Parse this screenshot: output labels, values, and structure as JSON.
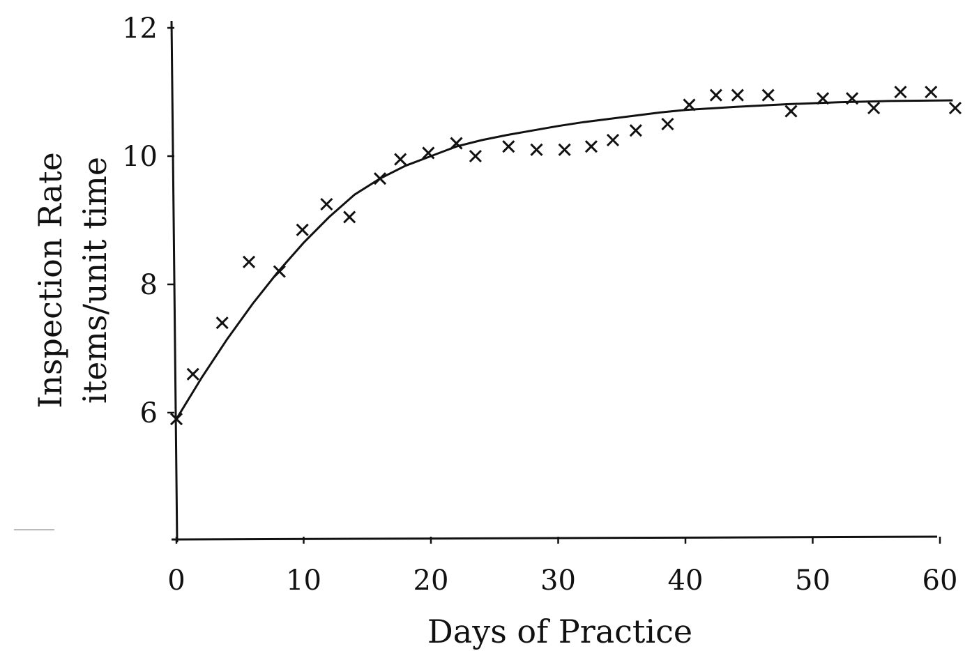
{
  "chart_data": {
    "type": "scatter",
    "xlabel": "Days of Practice",
    "ylabel_lines": [
      "Inspection Rate",
      "items/unit time"
    ],
    "xlim": [
      0,
      60
    ],
    "ylim": [
      4,
      12
    ],
    "x_ticks": [
      0,
      10,
      20,
      30,
      40,
      50,
      60
    ],
    "x_tick_labels": [
      "0",
      "10",
      "20",
      "30",
      "40",
      "50",
      "60"
    ],
    "y_ticks": [
      6,
      8,
      10,
      12
    ],
    "y_tick_labels": [
      "6",
      "8",
      "10",
      "12"
    ],
    "grid": false,
    "marker": "x",
    "points": [
      {
        "x": 0,
        "y": 5.9
      },
      {
        "x": 1.3,
        "y": 6.6
      },
      {
        "x": 3.6,
        "y": 7.4
      },
      {
        "x": 5.7,
        "y": 8.35
      },
      {
        "x": 8.1,
        "y": 8.2
      },
      {
        "x": 9.9,
        "y": 8.85
      },
      {
        "x": 11.8,
        "y": 9.25
      },
      {
        "x": 13.6,
        "y": 9.05
      },
      {
        "x": 16.0,
        "y": 9.65
      },
      {
        "x": 17.6,
        "y": 9.95
      },
      {
        "x": 19.8,
        "y": 10.05
      },
      {
        "x": 22.0,
        "y": 10.2
      },
      {
        "x": 23.5,
        "y": 10.0
      },
      {
        "x": 26.1,
        "y": 10.15
      },
      {
        "x": 28.3,
        "y": 10.1
      },
      {
        "x": 30.5,
        "y": 10.1
      },
      {
        "x": 32.6,
        "y": 10.15
      },
      {
        "x": 34.3,
        "y": 10.25
      },
      {
        "x": 36.1,
        "y": 10.4
      },
      {
        "x": 38.6,
        "y": 10.5
      },
      {
        "x": 40.3,
        "y": 10.8
      },
      {
        "x": 42.4,
        "y": 10.95
      },
      {
        "x": 44.1,
        "y": 10.95
      },
      {
        "x": 46.5,
        "y": 10.95
      },
      {
        "x": 48.3,
        "y": 10.7
      },
      {
        "x": 50.8,
        "y": 10.9
      },
      {
        "x": 53.1,
        "y": 10.9
      },
      {
        "x": 54.8,
        "y": 10.75
      },
      {
        "x": 56.9,
        "y": 11.0
      },
      {
        "x": 59.3,
        "y": 11.0
      },
      {
        "x": 61.2,
        "y": 10.75
      }
    ],
    "fit_curve": [
      {
        "x": 0,
        "y": 5.9
      },
      {
        "x": 2,
        "y": 6.55
      },
      {
        "x": 4,
        "y": 7.15
      },
      {
        "x": 6,
        "y": 7.7
      },
      {
        "x": 8,
        "y": 8.2
      },
      {
        "x": 10,
        "y": 8.65
      },
      {
        "x": 12,
        "y": 9.05
      },
      {
        "x": 14,
        "y": 9.4
      },
      {
        "x": 16,
        "y": 9.65
      },
      {
        "x": 18,
        "y": 9.85
      },
      {
        "x": 20,
        "y": 10.0
      },
      {
        "x": 22,
        "y": 10.15
      },
      {
        "x": 24,
        "y": 10.25
      },
      {
        "x": 26,
        "y": 10.33
      },
      {
        "x": 28,
        "y": 10.4
      },
      {
        "x": 30,
        "y": 10.47
      },
      {
        "x": 32,
        "y": 10.53
      },
      {
        "x": 34,
        "y": 10.58
      },
      {
        "x": 36,
        "y": 10.63
      },
      {
        "x": 38,
        "y": 10.68
      },
      {
        "x": 40,
        "y": 10.72
      },
      {
        "x": 44,
        "y": 10.77
      },
      {
        "x": 48,
        "y": 10.81
      },
      {
        "x": 52,
        "y": 10.84
      },
      {
        "x": 56,
        "y": 10.86
      },
      {
        "x": 61,
        "y": 10.87
      }
    ]
  }
}
